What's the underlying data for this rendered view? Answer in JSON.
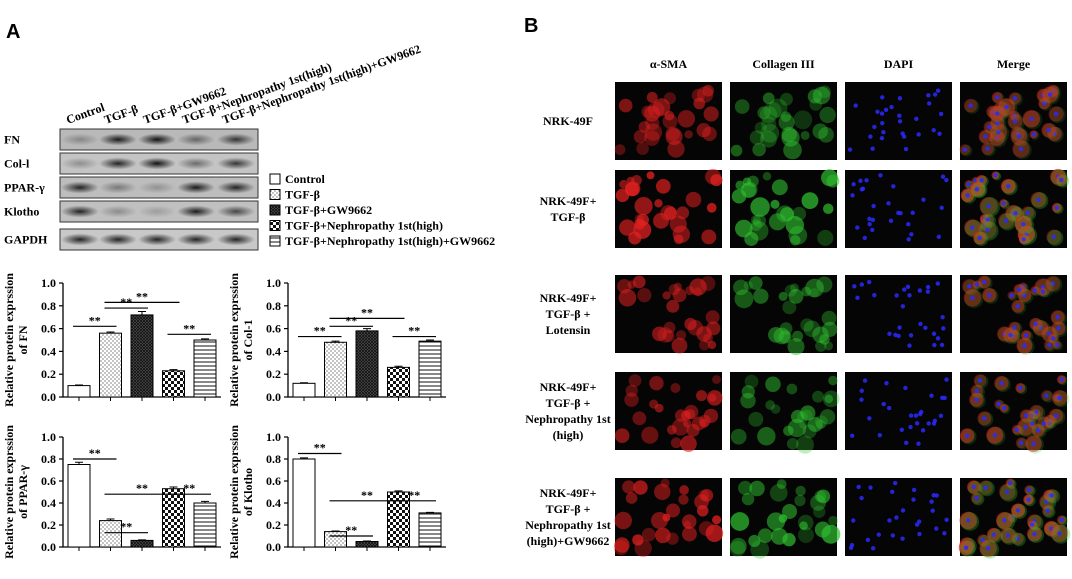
{
  "panel_a": {
    "label": "A",
    "lanes": [
      "Control",
      "TGF-β",
      "TGF-β+GW9662",
      "TGF-β+Nephropathy 1st(high)",
      "TGF-β+Nephropathy 1st(high)+GW9662"
    ],
    "blot_rows": [
      "FN",
      "Col-l",
      "PPAR-γ",
      "Klotho",
      "GAPDH"
    ]
  },
  "legend": [
    "Control",
    "TGF-β",
    "TGF-β+GW9662",
    "TGF-β+Nephropathy 1st(high)",
    "TGF-β+Nephropathy 1st(high)+GW9662"
  ],
  "chart_data": [
    {
      "type": "bar",
      "ylabel": [
        "Relative protein exprssion",
        "of FN"
      ],
      "categories": [
        null,
        null,
        null,
        null,
        null
      ],
      "values": [
        0.1,
        0.56,
        0.72,
        0.23,
        0.5
      ],
      "errors": [
        0.005,
        0.01,
        0.03,
        0.01,
        0.01
      ],
      "ylim": [
        0,
        1
      ],
      "yticks": [
        {
          "value": 0,
          "label": "0.0"
        },
        {
          "value": 0.2,
          "label": "0.2"
        },
        {
          "value": 0.4,
          "label": "0.4"
        },
        {
          "value": 0.6,
          "label": "0.6"
        },
        {
          "value": 0.8,
          "label": "0.8"
        },
        {
          "value": 1,
          "label": "1.0"
        }
      ],
      "annotations": [
        "**",
        "**",
        "**",
        "**"
      ]
    },
    {
      "type": "bar",
      "ylabel": [
        "Relative protein exprssion",
        "of Col-1"
      ],
      "categories": [
        null,
        null,
        null,
        null,
        null
      ],
      "values": [
        0.12,
        0.48,
        0.58,
        0.26,
        0.49
      ],
      "errors": [
        0.005,
        0.01,
        0.02,
        0.01,
        0.01
      ],
      "ylim": [
        0,
        1
      ],
      "yticks": [
        {
          "value": 0,
          "label": "0.0"
        },
        {
          "value": 0.2,
          "label": "0.2"
        },
        {
          "value": 0.4,
          "label": "0.4"
        },
        {
          "value": 0.6,
          "label": "0.6"
        },
        {
          "value": 0.8,
          "label": "0.8"
        },
        {
          "value": 1,
          "label": "1.0"
        }
      ],
      "annotations": [
        "**",
        "**",
        "**",
        "**"
      ]
    },
    {
      "type": "bar",
      "ylabel": [
        "Relative protein exprssion",
        "of PPAR-γ"
      ],
      "categories": [
        null,
        null,
        null,
        null,
        null
      ],
      "values": [
        0.75,
        0.24,
        0.06,
        0.53,
        0.4
      ],
      "errors": [
        0.02,
        0.015,
        0.005,
        0.015,
        0.015
      ],
      "ylim": [
        0,
        1
      ],
      "yticks": [
        {
          "value": 0,
          "label": "0.0"
        },
        {
          "value": 0.2,
          "label": "0.2"
        },
        {
          "value": 0.4,
          "label": "0.4"
        },
        {
          "value": 0.6,
          "label": "0.6"
        },
        {
          "value": 0.8,
          "label": "0.8"
        },
        {
          "value": 1,
          "label": "1.0"
        }
      ],
      "annotations": [
        "**",
        "**",
        "**",
        "**"
      ]
    },
    {
      "type": "bar",
      "ylabel": [
        "Relative protein exprssion",
        "of Klotho"
      ],
      "categories": [
        null,
        null,
        null,
        null,
        null
      ],
      "values": [
        0.8,
        0.14,
        0.05,
        0.5,
        0.31
      ],
      "errors": [
        0.01,
        0.005,
        0.005,
        0.01,
        0.005
      ],
      "ylim": [
        0,
        1
      ],
      "yticks": [
        {
          "value": 0,
          "label": "0.0"
        },
        {
          "value": 0.2,
          "label": "0.2"
        },
        {
          "value": 0.4,
          "label": "0.4"
        },
        {
          "value": 0.6,
          "label": "0.6"
        },
        {
          "value": 0.8,
          "label": "0.8"
        },
        {
          "value": 1,
          "label": "1.0"
        }
      ],
      "annotations": [
        "**",
        "**",
        "**",
        "**"
      ]
    }
  ],
  "panel_b": {
    "label": "B",
    "columns": [
      "α-SMA",
      "Collagen III",
      "DAPI",
      "Merge"
    ],
    "rows": [
      [
        "NRK-49F"
      ],
      [
        "NRK-49F+",
        "TGF-β"
      ],
      [
        "NRK-49F+",
        "TGF-β  +",
        "Lotensin"
      ],
      [
        "NRK-49F+",
        "TGF-β  +",
        "Nephropathy 1st",
        "(high)"
      ],
      [
        "NRK-49F+",
        "TGF-β  +",
        "Nephropathy 1st",
        "(high)+GW9662"
      ]
    ]
  }
}
